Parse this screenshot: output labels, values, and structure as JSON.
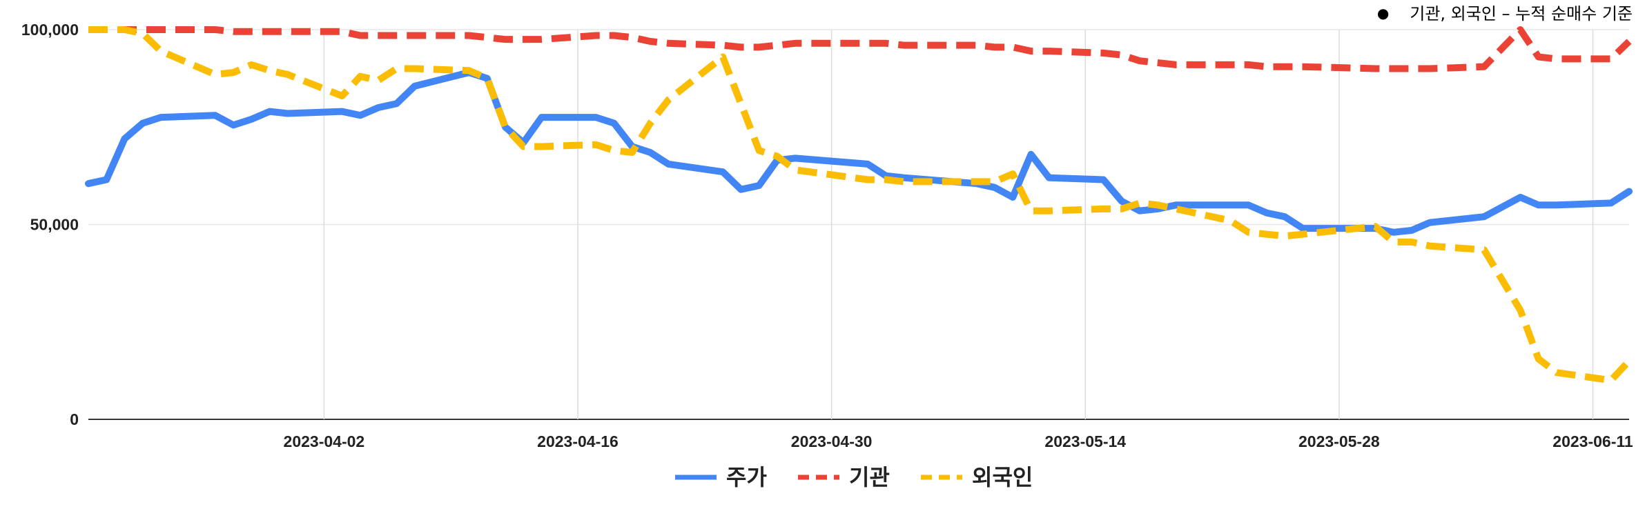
{
  "note": "기관, 외국인 – 누적 순매수 기준",
  "chart_data": {
    "type": "line",
    "ylim": [
      0,
      100000
    ],
    "y_ticks": [
      {
        "value": 0,
        "label": "0"
      },
      {
        "value": 50000,
        "label": "50,000"
      },
      {
        "value": 100000,
        "label": "100,000"
      }
    ],
    "x_range": [
      "2023-03-20",
      "2023-06-13"
    ],
    "x_ticks": [
      "2023-04-02",
      "2023-04-16",
      "2023-04-30",
      "2023-05-14",
      "2023-05-28",
      "2023-06-11"
    ],
    "grid": true,
    "legend_position": "bottom",
    "x": [
      "2023-03-20",
      "2023-03-21",
      "2023-03-22",
      "2023-03-23",
      "2023-03-24",
      "2023-03-27",
      "2023-03-28",
      "2023-03-29",
      "2023-03-30",
      "2023-03-31",
      "2023-04-03",
      "2023-04-04",
      "2023-04-05",
      "2023-04-06",
      "2023-04-07",
      "2023-04-10",
      "2023-04-11",
      "2023-04-12",
      "2023-04-13",
      "2023-04-14",
      "2023-04-17",
      "2023-04-18",
      "2023-04-19",
      "2023-04-20",
      "2023-04-21",
      "2023-04-24",
      "2023-04-25",
      "2023-04-26",
      "2023-04-27",
      "2023-04-28",
      "2023-05-02",
      "2023-05-03",
      "2023-05-04",
      "2023-05-08",
      "2023-05-09",
      "2023-05-10",
      "2023-05-11",
      "2023-05-12",
      "2023-05-15",
      "2023-05-16",
      "2023-05-17",
      "2023-05-18",
      "2023-05-19",
      "2023-05-22",
      "2023-05-23",
      "2023-05-24",
      "2023-05-25",
      "2023-05-26",
      "2023-05-30",
      "2023-05-31",
      "2023-06-01",
      "2023-06-02",
      "2023-06-05",
      "2023-06-07",
      "2023-06-08",
      "2023-06-09",
      "2023-06-12",
      "2023-06-13"
    ],
    "series": [
      {
        "name": "주가",
        "color": "#4285f4",
        "dash": "solid",
        "values": [
          60500,
          61500,
          72000,
          76000,
          77500,
          78000,
          75500,
          77000,
          79000,
          78500,
          79000,
          78000,
          80000,
          81000,
          85500,
          89000,
          87500,
          75000,
          71000,
          77500,
          77500,
          76000,
          70000,
          68500,
          65500,
          63500,
          59000,
          60000,
          66500,
          67000,
          65500,
          62500,
          62000,
          60500,
          59500,
          57000,
          68000,
          62000,
          61500,
          56000,
          53500,
          54000,
          55000,
          55000,
          55000,
          53000,
          52000,
          49000,
          49000,
          48000,
          48500,
          50500,
          52000,
          57000,
          55000,
          55000,
          55500,
          58500
        ]
      },
      {
        "name": "기관",
        "color": "#ea4335",
        "dash": "dashed",
        "values": [
          100000,
          100000,
          100000,
          100000,
          100000,
          100000,
          99500,
          99500,
          99500,
          99500,
          99500,
          98500,
          98500,
          98500,
          98500,
          98500,
          98000,
          97500,
          97500,
          97500,
          98500,
          98500,
          98000,
          97000,
          96500,
          96000,
          95500,
          95500,
          96000,
          96500,
          96500,
          96500,
          96000,
          96000,
          95500,
          95500,
          94500,
          94500,
          94000,
          93500,
          92000,
          91500,
          91000,
          91000,
          91000,
          90500,
          90500,
          90500,
          90000,
          90000,
          90000,
          90000,
          90500,
          100000,
          93000,
          92500,
          92500,
          97000
        ]
      },
      {
        "name": "외국인",
        "color": "#fbbc04",
        "dash": "dashed",
        "values": [
          100000,
          100000,
          100000,
          99000,
          94500,
          88500,
          89000,
          91000,
          89500,
          88500,
          83000,
          88000,
          87000,
          90000,
          90000,
          89500,
          87500,
          75000,
          70000,
          70000,
          70500,
          69000,
          68500,
          76000,
          82000,
          93000,
          81000,
          69000,
          67500,
          64000,
          61500,
          61500,
          61000,
          61000,
          61000,
          63000,
          53500,
          53500,
          54000,
          54000,
          55500,
          55000,
          54000,
          51000,
          48000,
          47500,
          47000,
          47500,
          49500,
          45500,
          45500,
          44500,
          43500,
          28000,
          15500,
          12000,
          10000,
          15000
        ]
      }
    ]
  }
}
